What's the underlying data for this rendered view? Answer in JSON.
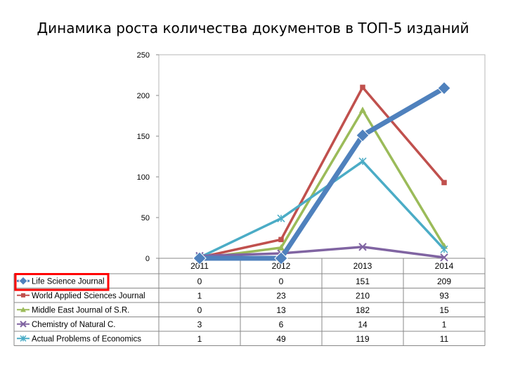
{
  "chart_data": {
    "type": "line",
    "title": "Динамика роста количества документов в ТОП-5 изданий",
    "categories": [
      "2011",
      "2012",
      "2013",
      "2014"
    ],
    "ylim": [
      0,
      250
    ],
    "yticks": [
      "250",
      "200",
      "150",
      "100",
      "50",
      "0"
    ],
    "grid": false,
    "legend": "data-table",
    "series": [
      {
        "name": "Life Science Journal",
        "values": [
          0,
          0,
          151,
          209
        ],
        "color": "#4F81BD",
        "marker": "diamond",
        "highlighted": true
      },
      {
        "name": "World Applied Sciences Journal",
        "values": [
          1,
          23,
          210,
          93
        ],
        "color": "#C0504D",
        "marker": "square"
      },
      {
        "name": "Middle East Journal of S.R.",
        "values": [
          0,
          13,
          182,
          15
        ],
        "color": "#9BBB59",
        "marker": "triangle"
      },
      {
        "name": "Chemistry of Natural C.",
        "values": [
          3,
          6,
          14,
          1
        ],
        "color": "#8064A2",
        "marker": "x"
      },
      {
        "name": "Actual Problems of Economics",
        "values": [
          1,
          49,
          119,
          11
        ],
        "color": "#4BACC6",
        "marker": "star"
      }
    ],
    "table_values": [
      [
        "0",
        "0",
        "151",
        "209"
      ],
      [
        "1",
        "23",
        "210",
        "93"
      ],
      [
        "0",
        "13",
        "182",
        "15"
      ],
      [
        "3",
        "6",
        "14",
        "1"
      ],
      [
        "1",
        "49",
        "119",
        "11"
      ]
    ]
  }
}
